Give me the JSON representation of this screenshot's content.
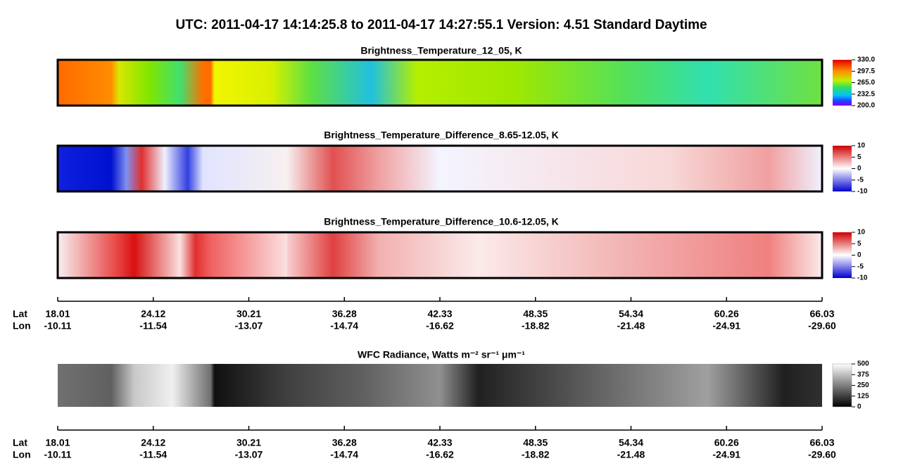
{
  "title": "UTC:  2011-04-17   14:14:25.8  to  2011-04-17   14:27:55.1    Version: 4.51  Standard Daytime",
  "panels": [
    {
      "title": "Brightness_Temperature_12_05, K",
      "clim": [
        200,
        330
      ],
      "ticks": [
        {
          "value": 330,
          "label": "330.0"
        },
        297.5,
        {
          "value": 265,
          "label": "265.0"
        },
        232.5,
        {
          "value": 200,
          "label": "200.0"
        }
      ]
    },
    {
      "title": "Brightness_Temperature_Difference_8.65-12.05, K",
      "clim": [
        -10,
        10
      ],
      "ticks": [
        10,
        5,
        0,
        -5,
        -10
      ]
    },
    {
      "title": "Brightness_Temperature_Difference_10.6-12.05, K",
      "clim": [
        -10,
        10
      ],
      "ticks": [
        10,
        5,
        0,
        -5,
        -10
      ]
    },
    {
      "title": "WFC Radiance, Watts m⁻² sr⁻¹ μm⁻¹",
      "clim": [
        0,
        500
      ],
      "ticks": [
        500,
        375,
        250,
        125,
        0
      ]
    }
  ],
  "axes": [
    {
      "lat_label": "Lat",
      "lon_label": "Lon",
      "lat": [
        "18.01",
        "24.12",
        "30.21",
        "36.28",
        "42.33",
        "48.35",
        "54.34",
        "60.26",
        "66.03"
      ],
      "lon": [
        "-10.11",
        "-11.54",
        "-13.07",
        "-14.74",
        "-16.62",
        "-18.82",
        "-21.48",
        "-24.91",
        "-29.60"
      ]
    },
    {
      "lat_label": "Lat",
      "lon_label": "Lon",
      "lat": [
        "18.01",
        "24.12",
        "30.21",
        "36.28",
        "42.33",
        "48.35",
        "54.34",
        "60.26",
        "66.03"
      ],
      "lon": [
        "-10.11",
        "-11.54",
        "-13.07",
        "-14.74",
        "-16.62",
        "-18.82",
        "-21.48",
        "-24.91",
        "-29.60"
      ]
    }
  ]
}
